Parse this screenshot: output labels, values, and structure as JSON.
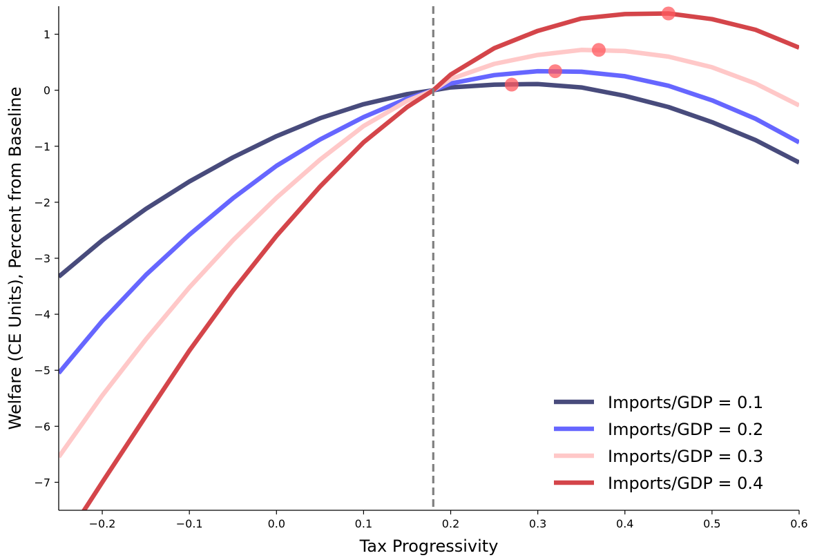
{
  "chart_data": {
    "type": "line",
    "title": "",
    "xlabel": "Tax Progressivity",
    "ylabel": "Welfare (CE Units), Percent from Baseline",
    "xlim": [
      -0.25,
      0.6
    ],
    "ylim": [
      -7.5,
      1.5
    ],
    "xticks": [
      -0.2,
      -0.1,
      0.0,
      0.1,
      0.2,
      0.3,
      0.4,
      0.5,
      0.6
    ],
    "xtick_labels": [
      "−0.2",
      "−0.1",
      "0.0",
      "0.1",
      "0.2",
      "0.3",
      "0.4",
      "0.5",
      "0.6"
    ],
    "yticks": [
      1,
      0,
      -1,
      -2,
      -3,
      -4,
      -5,
      -6,
      -7
    ],
    "ytick_labels": [
      "1",
      "0",
      "−1",
      "−2",
      "−3",
      "−4",
      "−5",
      "−6",
      "−7"
    ],
    "grid": false,
    "legend_position": "bottom-right",
    "reference_line": {
      "x": 0.18,
      "style": "dashed",
      "color": "#808080"
    },
    "x": [
      -0.25,
      -0.2,
      -0.15,
      -0.1,
      -0.05,
      0.0,
      0.05,
      0.1,
      0.15,
      0.18,
      0.2,
      0.25,
      0.3,
      0.35,
      0.4,
      0.45,
      0.5,
      0.55,
      0.6
    ],
    "series": [
      {
        "name": "Imports/GDP = 0.1",
        "color": "#484b7c",
        "values": [
          -3.33,
          -2.68,
          -2.12,
          -1.63,
          -1.2,
          -0.82,
          -0.5,
          -0.25,
          -0.07,
          0.0,
          0.05,
          0.1,
          0.11,
          0.05,
          -0.1,
          -0.3,
          -0.57,
          -0.89,
          -1.29
        ],
        "optimum": {
          "x": 0.27,
          "y": 0.1
        }
      },
      {
        "name": "Imports/GDP = 0.2",
        "color": "#6666ff",
        "values": [
          -5.05,
          -4.12,
          -3.3,
          -2.58,
          -1.93,
          -1.35,
          -0.88,
          -0.48,
          -0.15,
          0.0,
          0.12,
          0.27,
          0.34,
          0.33,
          0.25,
          0.08,
          -0.18,
          -0.51,
          -0.93
        ],
        "optimum": {
          "x": 0.32,
          "y": 0.34
        }
      },
      {
        "name": "Imports/GDP = 0.3",
        "color": "#ffc8c8",
        "values": [
          -6.55,
          -5.45,
          -4.45,
          -3.52,
          -2.68,
          -1.92,
          -1.24,
          -0.64,
          -0.19,
          0.0,
          0.2,
          0.47,
          0.63,
          0.72,
          0.7,
          0.6,
          0.41,
          0.12,
          -0.27
        ],
        "optimum": {
          "x": 0.37,
          "y": 0.72
        }
      },
      {
        "name": "Imports/GDP = 0.4",
        "color": "#d4454a",
        "values": [
          -8.2,
          -7.0,
          -5.82,
          -4.65,
          -3.58,
          -2.6,
          -1.72,
          -0.93,
          -0.3,
          0.0,
          0.28,
          0.75,
          1.06,
          1.28,
          1.36,
          1.37,
          1.27,
          1.08,
          0.76
        ],
        "optimum": {
          "x": 0.45,
          "y": 1.37
        }
      }
    ],
    "marker_color": "#ff5a5f"
  }
}
